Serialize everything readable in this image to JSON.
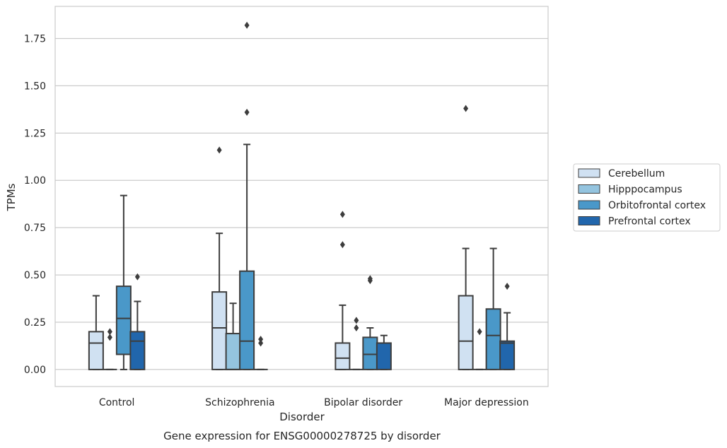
{
  "chart_data": {
    "type": "box",
    "xlabel": "Disorder",
    "ylabel": "TPMs",
    "caption": "Gene expression for ENSG00000278725 by disorder",
    "ylim": [
      -0.09,
      1.92
    ],
    "yticks": [
      0.0,
      0.25,
      0.5,
      0.75,
      1.0,
      1.25,
      1.5,
      1.75
    ],
    "ytick_labels": [
      "0.00",
      "0.25",
      "0.50",
      "0.75",
      "1.00",
      "1.25",
      "1.50",
      "1.75"
    ],
    "grid": "horizontal",
    "legend_position": "center-right outside",
    "categories": [
      "Control",
      "Schizophrenia",
      "Bipolar disorder",
      "Major depression"
    ],
    "series": [
      {
        "name": "Cerebellum",
        "color": "#d0e1f2",
        "boxes": [
          {
            "whislo": 0.0,
            "q1": 0.0,
            "med": 0.14,
            "q3": 0.2,
            "whishi": 0.39,
            "fliers": []
          },
          {
            "whislo": 0.0,
            "q1": 0.0,
            "med": 0.22,
            "q3": 0.41,
            "whishi": 0.72,
            "fliers": [
              1.16
            ]
          },
          {
            "whislo": 0.0,
            "q1": 0.0,
            "med": 0.06,
            "q3": 0.14,
            "whishi": 0.34,
            "fliers": [
              0.66,
              0.82
            ]
          },
          {
            "whislo": 0.0,
            "q1": 0.0,
            "med": 0.15,
            "q3": 0.39,
            "whishi": 0.64,
            "fliers": [
              1.38
            ]
          }
        ]
      },
      {
        "name": "Hipppocampus",
        "color": "#94c4df",
        "boxes": [
          {
            "whislo": 0.0,
            "q1": 0.0,
            "med": 0.0,
            "q3": 0.0,
            "whishi": 0.0,
            "fliers": [
              0.17,
              0.2
            ]
          },
          {
            "whislo": 0.0,
            "q1": 0.0,
            "med": 0.0,
            "q3": 0.19,
            "whishi": 0.35,
            "fliers": []
          },
          {
            "whislo": 0.0,
            "q1": 0.0,
            "med": 0.0,
            "q3": 0.0,
            "whishi": 0.0,
            "fliers": [
              0.22,
              0.26
            ]
          },
          {
            "whislo": 0.0,
            "q1": 0.0,
            "med": 0.0,
            "q3": 0.0,
            "whishi": 0.0,
            "fliers": [
              0.2
            ]
          }
        ]
      },
      {
        "name": "Orbitofrontal cortex",
        "color": "#4a98c9",
        "boxes": [
          {
            "whislo": 0.0,
            "q1": 0.08,
            "med": 0.27,
            "q3": 0.44,
            "whishi": 0.92,
            "fliers": []
          },
          {
            "whislo": 0.0,
            "q1": 0.0,
            "med": 0.15,
            "q3": 0.52,
            "whishi": 1.19,
            "fliers": [
              1.36,
              1.82
            ]
          },
          {
            "whislo": 0.0,
            "q1": 0.0,
            "med": 0.08,
            "q3": 0.17,
            "whishi": 0.22,
            "fliers": [
              0.47,
              0.48
            ]
          },
          {
            "whislo": 0.0,
            "q1": 0.0,
            "med": 0.18,
            "q3": 0.32,
            "whishi": 0.64,
            "fliers": []
          }
        ]
      },
      {
        "name": "Prefrontal cortex",
        "color": "#2166ac",
        "boxes": [
          {
            "whislo": 0.0,
            "q1": 0.0,
            "med": 0.15,
            "q3": 0.2,
            "whishi": 0.36,
            "fliers": [
              0.49
            ]
          },
          {
            "whislo": 0.0,
            "q1": 0.0,
            "med": 0.0,
            "q3": 0.0,
            "whishi": 0.0,
            "fliers": [
              0.14,
              0.16
            ]
          },
          {
            "whislo": 0.0,
            "q1": 0.0,
            "med": 0.14,
            "q3": 0.14,
            "whishi": 0.18,
            "fliers": []
          },
          {
            "whislo": 0.0,
            "q1": 0.0,
            "med": 0.14,
            "q3": 0.15,
            "whishi": 0.3,
            "fliers": [
              0.44
            ]
          }
        ]
      }
    ]
  }
}
